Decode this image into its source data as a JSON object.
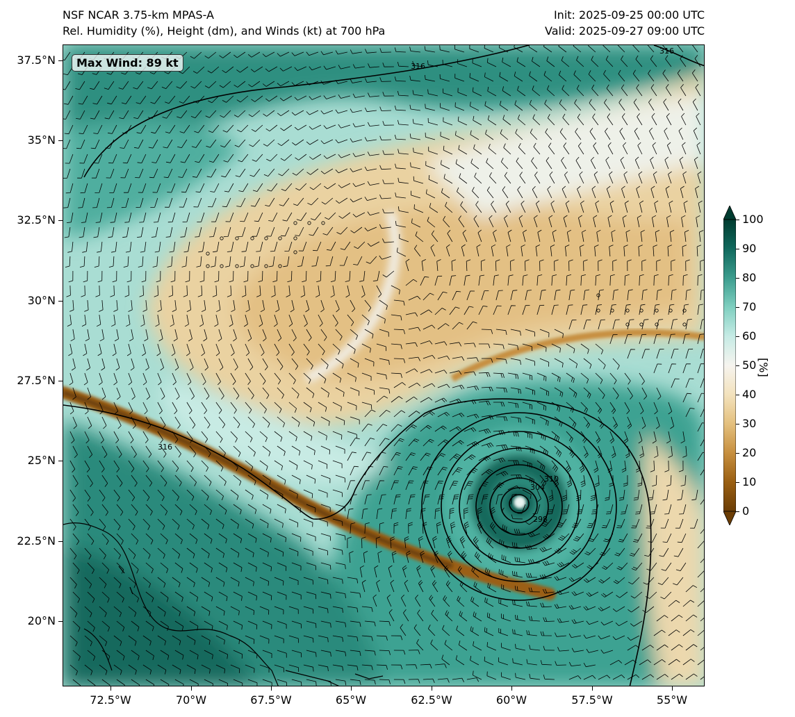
{
  "header": {
    "model": "NSF NCAR 3.75-km MPAS-A",
    "field": "Rel. Humidity (%), Height (dm), and Winds (kt) at 700 hPa",
    "init": "Init: 2025-09-25 00:00 UTC",
    "valid": "Valid: 2025-09-27 09:00 UTC"
  },
  "annotation": {
    "max_wind": "Max Wind: 89 kt"
  },
  "axes": {
    "lat_ticks": [
      "37.5°N",
      "35°N",
      "32.5°N",
      "30°N",
      "27.5°N",
      "25°N",
      "22.5°N",
      "20°N"
    ],
    "lon_ticks": [
      "72.5°W",
      "70°W",
      "67.5°W",
      "65°W",
      "62.5°W",
      "60°W",
      "57.5°W",
      "55°W"
    ],
    "lat_range": [
      18.0,
      38.0
    ],
    "lon_range": [
      -74.0,
      -54.0
    ]
  },
  "colorbar": {
    "label": "[%]",
    "ticks": [
      "0",
      "10",
      "20",
      "30",
      "40",
      "50",
      "60",
      "70",
      "80",
      "90",
      "100"
    ],
    "colors": [
      "#6b3d05",
      "#9a5f12",
      "#c78f3f",
      "#e4c07e",
      "#f3e2bd",
      "#f6f4ef",
      "#c6ebe5",
      "#7fcfc0",
      "#3c9d8e",
      "#10695d",
      "#003c30"
    ]
  },
  "map": {
    "contour_labels": [
      "316",
      "316",
      "316",
      "310",
      "304",
      "298"
    ],
    "hurricane_center": {
      "lat": 23.7,
      "lon": -59.8
    }
  }
}
